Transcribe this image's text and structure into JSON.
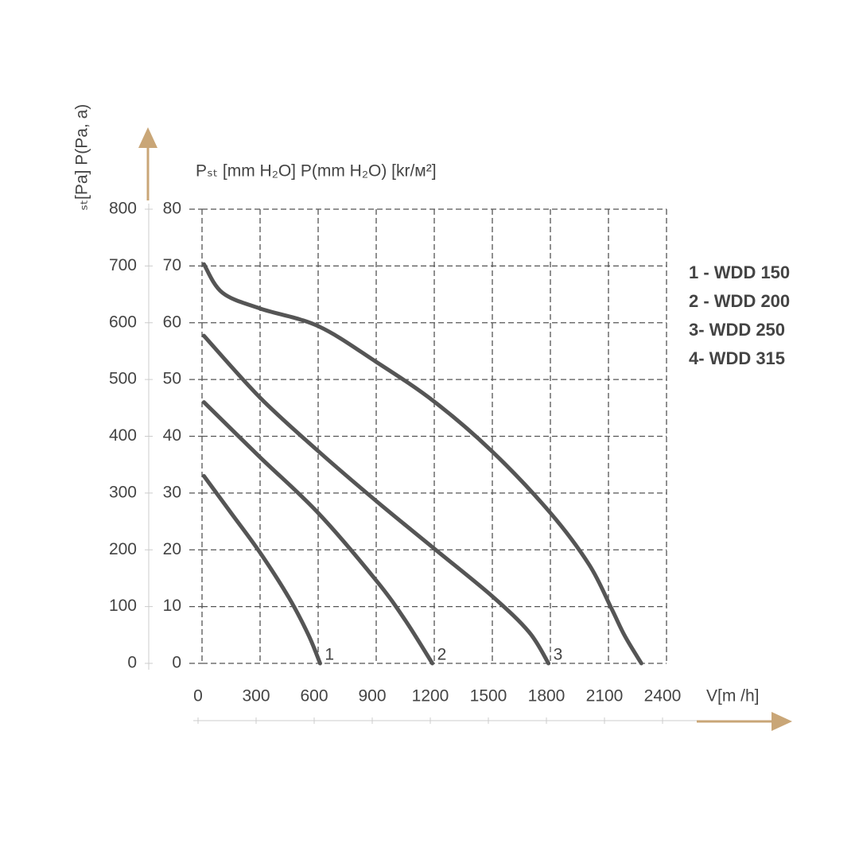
{
  "chart_data": {
    "type": "line",
    "y_title": "ₛₜ[Pa] P(Pa,  a)",
    "y2_title": "Pₛₜ [mm H₂O] P(mm H₂O) [kr/м²]",
    "x_title": "V[m /h]",
    "xlim": [
      0,
      2400
    ],
    "xticks": [
      0,
      300,
      600,
      900,
      1200,
      1500,
      1800,
      2100,
      2400
    ],
    "ylim": [
      0,
      800
    ],
    "yticks": [
      0,
      100,
      200,
      300,
      400,
      500,
      600,
      700,
      800
    ],
    "y2lim": [
      0,
      80
    ],
    "y2ticks": [
      0,
      10,
      20,
      30,
      40,
      50,
      60,
      70,
      80
    ],
    "grid": true,
    "legend": "right",
    "axis_color": "#c9a677",
    "series": [
      {
        "name": "1 - WDD 150",
        "label": "1",
        "color": "#555555",
        "x": [
          10,
          150,
          300,
          450,
          550,
          610
        ],
        "values": [
          330,
          265,
          195,
          115,
          50,
          0
        ]
      },
      {
        "name": "2 - WDD 200",
        "label": "2",
        "color": "#555555",
        "x": [
          10,
          300,
          600,
          900,
          1050,
          1190
        ],
        "values": [
          460,
          363,
          265,
          146,
          76,
          0
        ]
      },
      {
        "name": "3- WDD 250",
        "label": "3",
        "color": "#555555",
        "x": [
          10,
          300,
          600,
          900,
          1200,
          1500,
          1690,
          1790
        ],
        "values": [
          577,
          468,
          374,
          286,
          202,
          118,
          55,
          0
        ]
      },
      {
        "name": "4- WDD 315",
        "color": "#555555",
        "x": [
          10,
          105,
          300,
          600,
          900,
          1200,
          1500,
          1800,
          2000,
          2115,
          2185,
          2270
        ],
        "values": [
          703,
          653,
          625,
          594,
          531,
          461,
          373,
          265,
          174,
          97,
          48,
          0
        ]
      }
    ]
  }
}
